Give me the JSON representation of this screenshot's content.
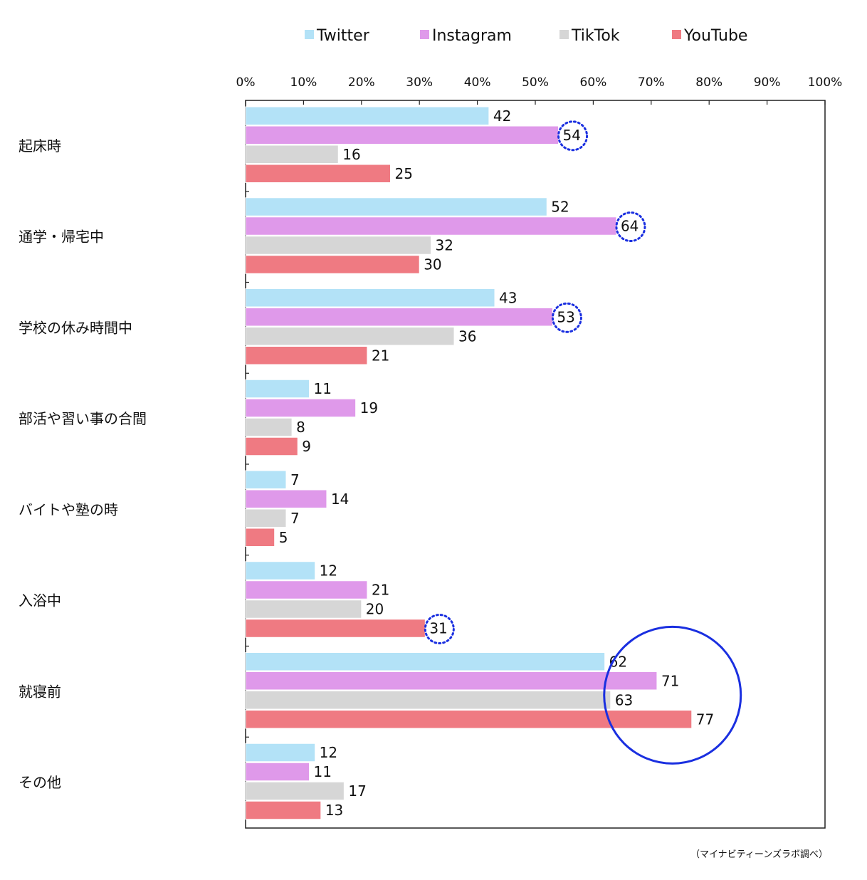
{
  "chart_data": {
    "type": "bar",
    "orientation": "horizontal",
    "x_ticks": [
      "0%",
      "10%",
      "20%",
      "30%",
      "40%",
      "50%",
      "60%",
      "70%",
      "80%",
      "90%",
      "100%"
    ],
    "xlim": [
      0,
      100
    ],
    "grid": false,
    "legend_position": "top",
    "categories": [
      "起床時",
      "通学・帰宅中",
      "学校の休み時間中",
      "部活や習い事の合間",
      "バイトや塾の時",
      "入浴中",
      "就寝前",
      "その他"
    ],
    "series": [
      {
        "name": "Twitter",
        "color": "#b3e2f7",
        "values": [
          42,
          52,
          43,
          11,
          7,
          12,
          62,
          12
        ]
      },
      {
        "name": "Instagram",
        "color": "#df99ea",
        "values": [
          54,
          64,
          53,
          19,
          14,
          21,
          71,
          11
        ]
      },
      {
        "name": "TikTok",
        "color": "#d6d6d6",
        "values": [
          16,
          32,
          36,
          8,
          7,
          20,
          63,
          17
        ]
      },
      {
        "name": "YouTube",
        "color": "#ef7a82",
        "values": [
          25,
          30,
          21,
          9,
          5,
          31,
          77,
          13
        ]
      }
    ],
    "highlights": [
      {
        "category": "起床時",
        "series": "Instagram",
        "style": "dotted-circle"
      },
      {
        "category": "通学・帰宅中",
        "series": "Instagram",
        "style": "dotted-circle"
      },
      {
        "category": "学校の休み時間中",
        "series": "Instagram",
        "style": "dotted-circle"
      },
      {
        "category": "入浴中",
        "series": "YouTube",
        "style": "dotted-circle"
      },
      {
        "category": "就寝前",
        "series": "all",
        "style": "solid-circle"
      }
    ],
    "highlight_color": "#1a2fe0",
    "source_note": "（マイナビティーンズラボ調べ）"
  }
}
